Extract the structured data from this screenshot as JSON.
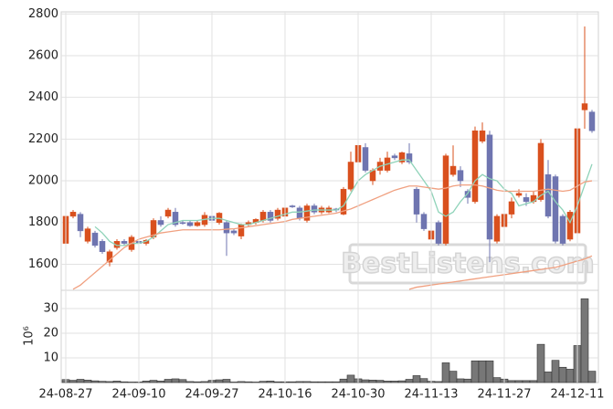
{
  "chart_data": [
    {
      "type": "candlestick",
      "up_color": "#d9501e",
      "down_color": "#6f75b0",
      "open": [
        1700,
        1830,
        1840,
        1710,
        1750,
        1710,
        1610,
        1680,
        1710,
        1670,
        1710,
        1700,
        1730,
        1810,
        1830,
        1850,
        1800,
        1800,
        1785,
        1790,
        1830,
        1800,
        1800,
        1760,
        1735,
        1790,
        1800,
        1810,
        1850,
        1820,
        1830,
        1880,
        1870,
        1810,
        1880,
        1850,
        1850,
        1865,
        1840,
        1960,
        2090,
        2160,
        2000,
        2050,
        2050,
        2120,
        2090,
        2130,
        1960,
        1840,
        1720,
        1800,
        1700,
        2030,
        2050,
        1950,
        1900,
        2190,
        2220,
        1710,
        1780,
        1840,
        1930,
        1920,
        1900,
        1910,
        2030,
        2020,
        1830,
        1720,
        1750,
        2340,
        2330
      ],
      "high": [
        1840,
        1860,
        1850,
        1780,
        1760,
        1720,
        1670,
        1720,
        1720,
        1740,
        1720,
        1720,
        1820,
        1830,
        1870,
        1870,
        1810,
        1810,
        1810,
        1850,
        1840,
        1850,
        1810,
        1770,
        1795,
        1810,
        1820,
        1860,
        1860,
        1870,
        1880,
        1885,
        1880,
        1890,
        1890,
        1880,
        1880,
        1870,
        1970,
        2140,
        2220,
        2180,
        2060,
        2110,
        2140,
        2130,
        2140,
        2180,
        1970,
        1850,
        1780,
        1810,
        2130,
        2170,
        2070,
        1960,
        2260,
        2280,
        2240,
        1840,
        1850,
        1920,
        1960,
        1940,
        1950,
        2200,
        2100,
        2030,
        1840,
        1860,
        2330,
        2740,
        2340
      ],
      "low": [
        1700,
        1820,
        1730,
        1700,
        1680,
        1650,
        1590,
        1670,
        1690,
        1660,
        1690,
        1690,
        1720,
        1780,
        1820,
        1780,
        1790,
        1780,
        1780,
        1780,
        1800,
        1790,
        1640,
        1740,
        1720,
        1780,
        1790,
        1800,
        1800,
        1810,
        1820,
        1870,
        1810,
        1800,
        1840,
        1840,
        1845,
        1850,
        1835,
        1950,
        2080,
        2040,
        1980,
        2030,
        2040,
        2100,
        2080,
        2080,
        1800,
        1760,
        1700,
        1690,
        1690,
        2020,
        1970,
        1890,
        1890,
        2180,
        1610,
        1700,
        1770,
        1820,
        1920,
        1880,
        1890,
        1900,
        1820,
        1700,
        1690,
        1710,
        1740,
        2250,
        2230
      ],
      "close": [
        1830,
        1850,
        1760,
        1770,
        1690,
        1660,
        1660,
        1710,
        1700,
        1730,
        1700,
        1715,
        1810,
        1790,
        1860,
        1790,
        1795,
        1785,
        1800,
        1835,
        1810,
        1845,
        1750,
        1750,
        1790,
        1800,
        1815,
        1850,
        1810,
        1860,
        1870,
        1875,
        1820,
        1880,
        1850,
        1870,
        1870,
        1860,
        1960,
        2090,
        2170,
        2050,
        2050,
        2090,
        2110,
        2110,
        2135,
        2090,
        1840,
        1770,
        1760,
        1700,
        2120,
        2070,
        2000,
        1920,
        2240,
        2240,
        1720,
        1830,
        1840,
        1900,
        1940,
        1900,
        1930,
        2180,
        1830,
        1710,
        1700,
        1850,
        2250,
        2370,
        2240
      ],
      "lines": [
        {
          "color": "#8fd3b9",
          "values": [
            null,
            null,
            null,
            null,
            1780,
            1750,
            1710,
            1690,
            1690,
            1700,
            1700,
            1710,
            1730,
            1760,
            1790,
            1800,
            1810,
            1810,
            1810,
            1815,
            1820,
            1820,
            1810,
            1800,
            1790,
            1790,
            1800,
            1810,
            1820,
            1830,
            1840,
            1850,
            1850,
            1855,
            1860,
            1860,
            1860,
            1860,
            1880,
            1940,
            2000,
            2030,
            2050,
            2070,
            2080,
            2090,
            2100,
            2100,
            2050,
            2000,
            1950,
            1850,
            1830,
            1850,
            1900,
            1940,
            2000,
            2030,
            2010,
            2000,
            1960,
            1940,
            1880,
            1890,
            1900,
            1930,
            1950,
            1900,
            1860,
            1800,
            1880,
            1980,
            2080
          ]
        },
        {
          "color": "#f0a080",
          "values": [
            null,
            1480,
            1500,
            1530,
            1560,
            1590,
            1620,
            1650,
            1680,
            1700,
            1720,
            1730,
            1740,
            1750,
            1755,
            1760,
            1765,
            1765,
            1765,
            1765,
            1765,
            1765,
            1768,
            1770,
            1775,
            1780,
            1785,
            1790,
            1795,
            1800,
            1805,
            1815,
            1820,
            1825,
            1830,
            1835,
            1840,
            1845,
            1855,
            1865,
            1880,
            1895,
            1910,
            1925,
            1940,
            1955,
            1965,
            1975,
            1975,
            1970,
            1965,
            1960,
            1965,
            1975,
            1980,
            1980,
            1980,
            1975,
            1965,
            1955,
            1950,
            1950,
            1950,
            1950,
            1950,
            1955,
            1960,
            1955,
            1950,
            1955,
            1975,
            1995,
            2000
          ]
        },
        {
          "color": "#f0a080",
          "values": [
            null,
            null,
            null,
            null,
            null,
            null,
            null,
            null,
            null,
            null,
            null,
            null,
            null,
            null,
            null,
            null,
            null,
            null,
            null,
            null,
            null,
            null,
            null,
            null,
            null,
            null,
            null,
            null,
            null,
            null,
            null,
            null,
            null,
            null,
            null,
            null,
            null,
            null,
            null,
            null,
            null,
            null,
            null,
            null,
            null,
            null,
            null,
            1480,
            1490,
            1495,
            1500,
            1505,
            1510,
            1515,
            1520,
            1525,
            1530,
            1535,
            1540,
            1545,
            1550,
            1555,
            1560,
            1565,
            1570,
            1575,
            1580,
            1585,
            1595,
            1605,
            1615,
            1625,
            1640
          ]
        }
      ],
      "ylim": [
        1475,
        2810
      ],
      "yticks": [
        1600,
        1800,
        2000,
        2200,
        2400,
        2600,
        2800
      ],
      "grid": true,
      "watermark": "BestListens.com"
    },
    {
      "type": "bar",
      "color": "#777777",
      "categories": [
        "24-08-27",
        null,
        null,
        null,
        null,
        null,
        null,
        null,
        null,
        null,
        "24-09-10",
        null,
        null,
        null,
        null,
        null,
        null,
        null,
        null,
        null,
        "24-09-27",
        null,
        null,
        null,
        null,
        null,
        null,
        null,
        null,
        null,
        "24-10-16",
        null,
        null,
        null,
        null,
        null,
        null,
        null,
        null,
        null,
        "24-10-30",
        null,
        null,
        null,
        null,
        null,
        null,
        null,
        null,
        null,
        "24-11-13",
        null,
        null,
        null,
        null,
        null,
        null,
        null,
        null,
        null,
        "24-11-27",
        null,
        null,
        null,
        null,
        null,
        null,
        null,
        null,
        null,
        "24-12-11",
        null,
        null
      ],
      "values": [
        1.2,
        0.9,
        1.3,
        1.0,
        0.7,
        0.5,
        0.4,
        0.6,
        0.3,
        0.2,
        0.2,
        0.6,
        0.9,
        0.6,
        1.3,
        1.5,
        1.2,
        0.4,
        0.3,
        0.4,
        0.9,
        1.1,
        1.3,
        0.2,
        0.4,
        0.3,
        0.2,
        0.5,
        0.6,
        0.3,
        0.3,
        0.3,
        0.4,
        0.4,
        0.3,
        0.3,
        0.3,
        0.3,
        1.4,
        3.0,
        1.5,
        1.1,
        1.0,
        0.9,
        0.6,
        0.6,
        0.7,
        1.3,
        2.8,
        1.6,
        0.5,
        0.4,
        8.0,
        4.6,
        1.5,
        1.4,
        8.8,
        8.8,
        8.8,
        2.0,
        1.4,
        0.8,
        0.8,
        0.8,
        0.8,
        15.5,
        4.3,
        9.0,
        6.2,
        5.4,
        15.0,
        34.0,
        4.6
      ],
      "y_label": "10⁶",
      "ylim": [
        0,
        37.4
      ],
      "yticks": [
        10,
        20,
        30
      ],
      "grid": true
    }
  ]
}
